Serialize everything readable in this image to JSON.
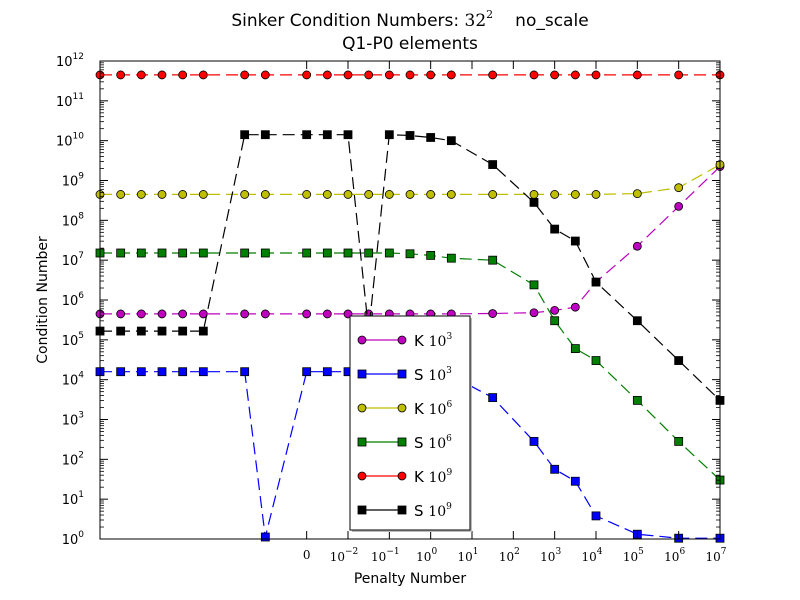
{
  "chart_data": {
    "type": "line",
    "title": {
      "main": "Sinker Condition Numbers: ",
      "math_base": "32",
      "math_exp": "2",
      "suffix": "no_scale",
      "line2": "Q1-P0 elements"
    },
    "xlabel": "Penalty Number",
    "ylabel": "Condition Number",
    "y_scale": "log",
    "ylim": [
      0,
      12
    ],
    "x_ticks": [
      {
        "label": "0",
        "base": "",
        "exp": ""
      },
      {
        "label": "",
        "base": "10",
        "exp": "−2"
      },
      {
        "label": "",
        "base": "10",
        "exp": "−1"
      },
      {
        "label": "",
        "base": "10",
        "exp": "0"
      },
      {
        "label": "",
        "base": "10",
        "exp": "1"
      },
      {
        "label": "",
        "base": "10",
        "exp": "2"
      },
      {
        "label": "",
        "base": "10",
        "exp": "3"
      },
      {
        "label": "",
        "base": "10",
        "exp": "4"
      },
      {
        "label": "",
        "base": "10",
        "exp": "5"
      },
      {
        "label": "",
        "base": "10",
        "exp": "6"
      },
      {
        "label": "",
        "base": "10",
        "exp": "7"
      }
    ],
    "x_tick_positions": [
      3.0,
      4.0,
      5.0,
      6.0,
      7.0,
      8.0,
      9.0,
      10.0,
      11.0,
      12.0,
      13.0
    ],
    "xlim": [
      -2.0,
      13.0
    ],
    "y_ticks": [
      {
        "base": "10",
        "exp": "0"
      },
      {
        "base": "10",
        "exp": "1"
      },
      {
        "base": "10",
        "exp": "2"
      },
      {
        "base": "10",
        "exp": "3"
      },
      {
        "base": "10",
        "exp": "4"
      },
      {
        "base": "10",
        "exp": "5"
      },
      {
        "base": "10",
        "exp": "6"
      },
      {
        "base": "10",
        "exp": "7"
      },
      {
        "base": "10",
        "exp": "8"
      },
      {
        "base": "10",
        "exp": "9"
      },
      {
        "base": "10",
        "exp": "10"
      },
      {
        "base": "10",
        "exp": "11"
      },
      {
        "base": "10",
        "exp": "12"
      }
    ],
    "x": [
      -2.0,
      -1.5,
      -1.0,
      -0.5,
      0.0,
      0.5,
      1.5,
      2.0,
      3.0,
      3.5,
      4.0,
      4.5,
      5.0,
      5.5,
      6.0,
      6.5,
      7.5,
      8.5,
      9.0,
      9.5,
      10.0,
      11.0,
      12.0,
      13.0
    ],
    "series": [
      {
        "name": "K 10^3",
        "legend_letter": "K",
        "legend_base": "10",
        "legend_exp": "3",
        "color": "#bf00bf",
        "marker": "circle",
        "dash": "12,6",
        "values": [
          5.65,
          5.65,
          5.65,
          5.65,
          5.65,
          5.65,
          5.65,
          5.65,
          5.65,
          5.65,
          5.65,
          5.65,
          5.65,
          5.65,
          5.65,
          5.65,
          5.66,
          5.68,
          5.74,
          5.82,
          6.45,
          7.35,
          8.35,
          9.35
        ]
      },
      {
        "name": "S 10^3",
        "legend_letter": "S",
        "legend_base": "10",
        "legend_exp": "3",
        "color": "#0000ff",
        "marker": "square",
        "dash": "12,6",
        "values": [
          4.2,
          4.2,
          4.2,
          4.2,
          4.2,
          4.2,
          4.2,
          0.05,
          4.2,
          4.2,
          4.2,
          4.2,
          4.2,
          4.2,
          4.2,
          4.1,
          3.55,
          2.45,
          1.75,
          1.45,
          0.58,
          0.12,
          0.02,
          0.02
        ]
      },
      {
        "name": "K 10^6",
        "legend_letter": "K",
        "legend_base": "10",
        "legend_exp": "6",
        "color": "#bfbf00",
        "marker": "circle",
        "dash": "12,6",
        "values": [
          8.65,
          8.65,
          8.65,
          8.65,
          8.65,
          8.65,
          8.65,
          8.65,
          8.65,
          8.65,
          8.65,
          8.65,
          8.65,
          8.65,
          8.65,
          8.65,
          8.65,
          8.65,
          8.65,
          8.65,
          8.65,
          8.67,
          8.82,
          9.4
        ]
      },
      {
        "name": "S 10^6",
        "legend_letter": "S",
        "legend_base": "10",
        "legend_exp": "6",
        "color": "#007f00",
        "marker": "square",
        "dash": "12,6",
        "values": [
          7.18,
          7.18,
          7.18,
          7.18,
          7.18,
          7.18,
          7.18,
          7.18,
          7.18,
          7.18,
          7.18,
          7.18,
          7.18,
          7.16,
          7.12,
          7.05,
          7.0,
          6.38,
          5.48,
          4.78,
          4.48,
          3.48,
          2.45,
          1.48
        ]
      },
      {
        "name": "K 10^9",
        "legend_letter": "K",
        "legend_base": "10",
        "legend_exp": "9",
        "color": "#ff0000",
        "marker": "circle",
        "dash": "12,6",
        "values": [
          11.65,
          11.65,
          11.65,
          11.65,
          11.65,
          11.65,
          11.65,
          11.65,
          11.65,
          11.65,
          11.65,
          11.65,
          11.65,
          11.65,
          11.65,
          11.65,
          11.65,
          11.65,
          11.65,
          11.65,
          11.65,
          11.65,
          11.65,
          11.65
        ]
      },
      {
        "name": "S 10^9",
        "legend_letter": "S",
        "legend_base": "10",
        "legend_exp": "9",
        "color": "#000000",
        "marker": "square",
        "dash": "12,6",
        "values": [
          5.22,
          5.22,
          5.22,
          5.22,
          5.22,
          5.22,
          10.15,
          10.15,
          10.15,
          10.15,
          10.15,
          5.22,
          10.15,
          10.13,
          10.08,
          10.0,
          9.4,
          8.45,
          7.78,
          7.48,
          6.45,
          5.48,
          4.48,
          3.48
        ]
      }
    ],
    "legend_position": "lower-center"
  }
}
